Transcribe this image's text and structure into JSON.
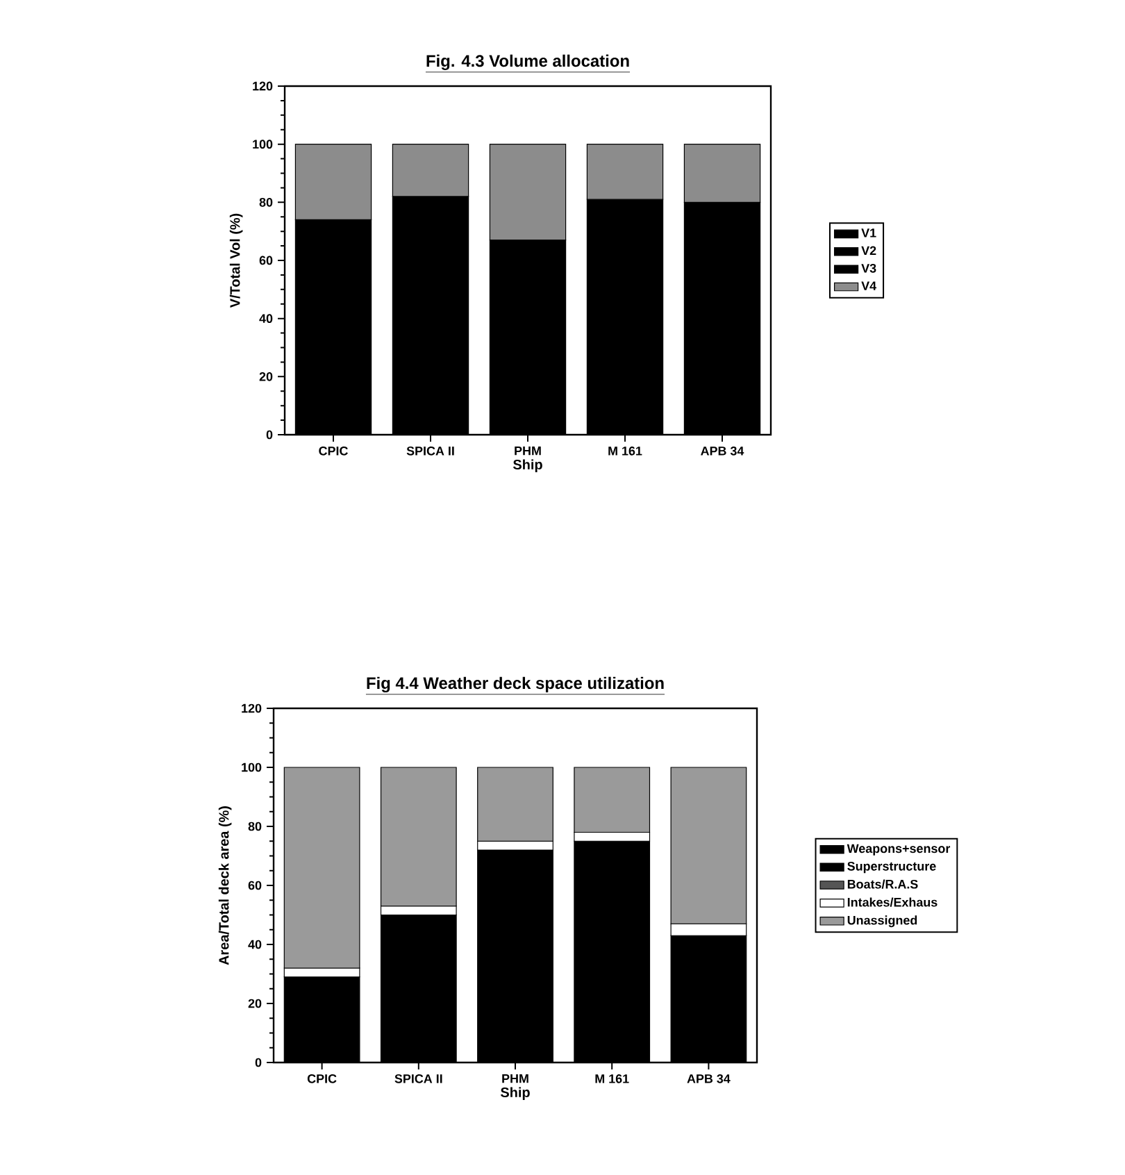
{
  "chart_data": [
    {
      "type": "bar",
      "title": "Fig. 4.3  Volume allocation",
      "xlabel": "Ship",
      "ylabel": "V/Total Vol (%)",
      "stacked": true,
      "categories": [
        "CPIC",
        "SPICA II",
        "PHM",
        "M  161",
        "APB  34"
      ],
      "ylim": [
        0,
        120
      ],
      "yticks": [
        0,
        20,
        40,
        60,
        80,
        100,
        120
      ],
      "legend": "right",
      "series": [
        {
          "name": "V1",
          "color": "#000000",
          "values": [
            74,
            82,
            67,
            81,
            80
          ]
        },
        {
          "name": "V2",
          "color": "#000000",
          "values": [
            null,
            null,
            null,
            null,
            null
          ]
        },
        {
          "name": "V3",
          "color": "#000000",
          "values": [
            null,
            null,
            null,
            null,
            null
          ]
        },
        {
          "name": "V4",
          "color": "#8c8c8c",
          "values": [
            26,
            18,
            33,
            19,
            20
          ]
        }
      ]
    },
    {
      "type": "bar",
      "title": "Fig 4.4  Weather deck space utilization",
      "xlabel": "Ship",
      "ylabel": "Area/Total deck area (%)",
      "stacked": true,
      "categories": [
        "CPIC",
        "SPICA II",
        "PHM",
        "M  161",
        "APB  34"
      ],
      "ylim": [
        0,
        120
      ],
      "yticks": [
        0,
        20,
        40,
        60,
        80,
        100,
        120
      ],
      "legend": "right",
      "series": [
        {
          "name": "Weapons+sensor",
          "color": "#000000",
          "values": [
            29,
            50,
            72,
            75,
            43
          ]
        },
        {
          "name": "Superstructure",
          "color": "#000000",
          "values": [
            null,
            null,
            null,
            null,
            null
          ]
        },
        {
          "name": "Boats/R.A.S",
          "color": "#555555",
          "values": [
            null,
            null,
            null,
            null,
            null
          ]
        },
        {
          "name": "Intakes/Exhaus",
          "color": "#ffffff",
          "values": [
            3,
            3,
            3,
            3,
            4
          ]
        },
        {
          "name": "Unassigned",
          "color": "#9a9a9a",
          "values": [
            68,
            47,
            25,
            22,
            53
          ]
        }
      ]
    }
  ]
}
